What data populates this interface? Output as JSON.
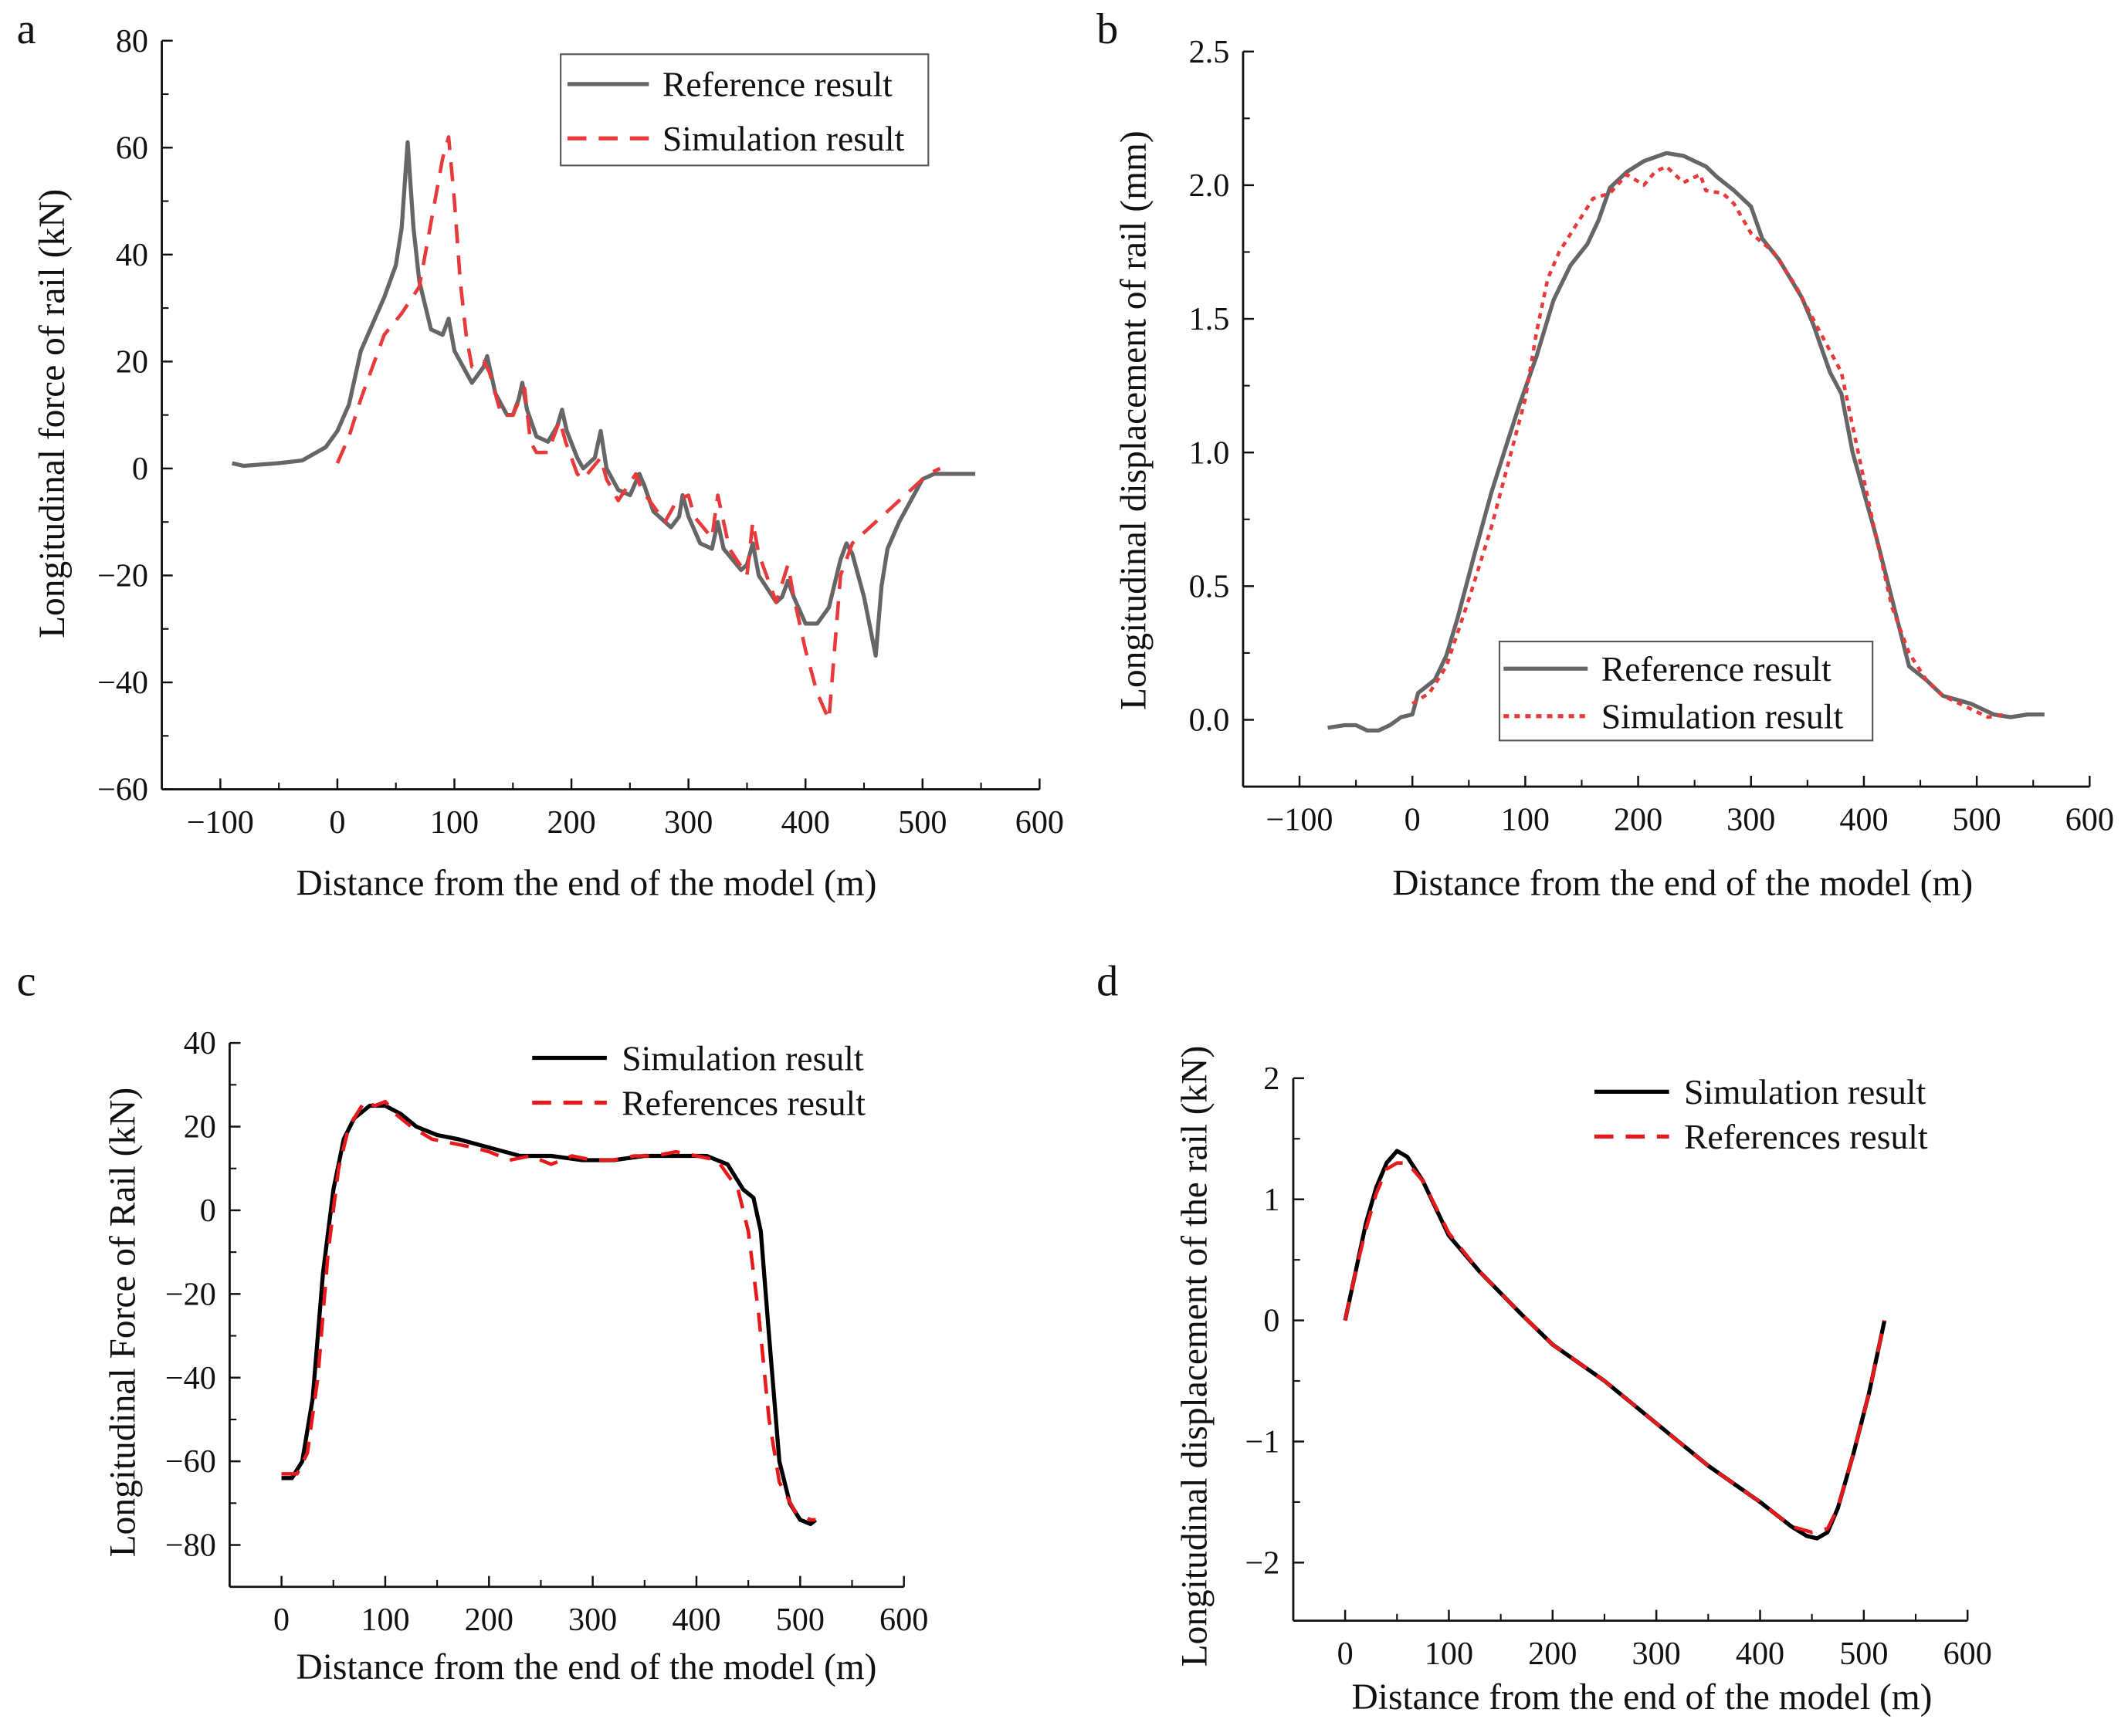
{
  "chart_data": [
    {
      "panel": "a",
      "type": "line",
      "xlabel": "Distance from the end of the model (m)",
      "ylabel": "Longitudinal force of  rail (kN)",
      "xlim": [
        -150,
        600
      ],
      "ylim": [
        -60,
        80
      ],
      "xticks": [
        "−100",
        "0",
        "100",
        "200",
        "300",
        "400",
        "500",
        "600"
      ],
      "xtick_values": [
        -100,
        0,
        100,
        200,
        300,
        400,
        500,
        600
      ],
      "yticks": [
        "−60",
        "−40",
        "−20",
        "0",
        "20",
        "40",
        "60",
        "80"
      ],
      "ytick_values": [
        -60,
        -40,
        -20,
        0,
        20,
        40,
        60,
        80
      ],
      "legend": "top-right",
      "series": [
        {
          "name": "Reference result",
          "color": "#666666",
          "style": "solid",
          "x": [
            -90,
            -80,
            -50,
            -30,
            -10,
            0,
            10,
            20,
            30,
            40,
            50,
            55,
            60,
            65,
            70,
            80,
            90,
            95,
            100,
            110,
            115,
            125,
            128,
            135,
            145,
            150,
            155,
            158,
            162,
            170,
            180,
            188,
            192,
            196,
            205,
            210,
            220,
            225,
            230,
            240,
            250,
            258,
            262,
            270,
            285,
            292,
            295,
            300,
            310,
            320,
            325,
            330,
            345,
            350,
            355,
            360,
            375,
            380,
            385,
            390,
            400,
            410,
            420,
            430,
            435,
            440,
            450,
            460,
            465,
            470,
            480,
            490,
            500,
            510,
            530,
            545
          ],
          "y": [
            1,
            0.5,
            1,
            1.5,
            4,
            7,
            12,
            22,
            27,
            32,
            38,
            45,
            61,
            45,
            35,
            26,
            25,
            28,
            22,
            18,
            16,
            19,
            21,
            14,
            10,
            10,
            13,
            16,
            11,
            6,
            5,
            8,
            11,
            7,
            2,
            0,
            2,
            7,
            0,
            -4,
            -5,
            -1,
            -3,
            -8,
            -11,
            -9,
            -5,
            -9,
            -14,
            -15,
            -10,
            -15,
            -19,
            -18,
            -14,
            -20,
            -25,
            -24,
            -21,
            -24,
            -29,
            -29,
            -26,
            -17,
            -14,
            -16,
            -24,
            -35,
            -22,
            -15,
            -10,
            -6,
            -2,
            -1,
            -1,
            -1
          ]
        },
        {
          "name": "Simulation result",
          "color": "#e8393b",
          "style": "dashed",
          "x": [
            0,
            10,
            20,
            30,
            40,
            55,
            70,
            80,
            90,
            95,
            100,
            105,
            110,
            115,
            125,
            130,
            140,
            150,
            160,
            165,
            170,
            180,
            190,
            195,
            205,
            210,
            225,
            230,
            240,
            255,
            260,
            270,
            280,
            290,
            300,
            305,
            320,
            325,
            335,
            350,
            355,
            360,
            375,
            385,
            390,
            400,
            410,
            420,
            430,
            440,
            450,
            470,
            490,
            505,
            515
          ],
          "y": [
            1,
            6,
            13,
            19,
            25,
            29,
            34,
            46,
            58,
            62,
            50,
            35,
            25,
            19,
            20,
            18,
            10,
            10,
            15,
            5,
            3,
            3,
            9,
            5,
            -1,
            -2,
            2,
            -2,
            -6,
            -1,
            -4,
            -7,
            -10,
            -6,
            -5,
            -9,
            -13,
            -5,
            -15,
            -20,
            -10,
            -16,
            -25,
            -18,
            -24,
            -34,
            -42,
            -47,
            -20,
            -14,
            -12,
            -8,
            -4,
            -1,
            0
          ]
        }
      ]
    },
    {
      "panel": "b",
      "type": "line",
      "xlabel": "Distance from the end of the model (m)",
      "ylabel": "Longitudinal displacement of  rail (mm)",
      "xlim": [
        -150,
        600
      ],
      "ylim": [
        -0.25,
        2.5
      ],
      "xticks": [
        "−100",
        "0",
        "100",
        "200",
        "300",
        "400",
        "500",
        "600"
      ],
      "xtick_values": [
        -100,
        0,
        100,
        200,
        300,
        400,
        500,
        600
      ],
      "yticks": [
        "0.0",
        "0.5",
        "1.0",
        "1.5",
        "2.0",
        "2.5"
      ],
      "ytick_values": [
        0,
        0.5,
        1,
        1.5,
        2,
        2.5
      ],
      "legend": "bottom-right",
      "series": [
        {
          "name": "Reference result",
          "color": "#666666",
          "style": "solid",
          "x": [
            -75,
            -60,
            -50,
            -40,
            -30,
            -20,
            -10,
            0,
            5,
            20,
            30,
            40,
            55,
            70,
            85,
            95,
            110,
            125,
            140,
            155,
            165,
            175,
            190,
            205,
            225,
            240,
            260,
            270,
            285,
            300,
            310,
            325,
            345,
            355,
            370,
            380,
            390,
            410,
            425,
            440,
            455,
            470,
            495,
            515,
            530,
            545,
            560
          ],
          "y": [
            -0.03,
            -0.02,
            -0.02,
            -0.04,
            -0.04,
            -0.02,
            0.01,
            0.02,
            0.1,
            0.15,
            0.24,
            0.38,
            0.62,
            0.85,
            1.05,
            1.18,
            1.36,
            1.57,
            1.7,
            1.78,
            1.87,
            1.99,
            2.05,
            2.09,
            2.12,
            2.11,
            2.07,
            2.03,
            1.98,
            1.92,
            1.8,
            1.72,
            1.58,
            1.48,
            1.3,
            1.22,
            1.0,
            0.7,
            0.45,
            0.2,
            0.15,
            0.09,
            0.06,
            0.02,
            0.01,
            0.02,
            0.02
          ]
        },
        {
          "name": "Simulation result",
          "color": "#e8393b",
          "style": "dotted",
          "x": [
            0,
            15,
            30,
            50,
            70,
            85,
            100,
            110,
            120,
            130,
            145,
            160,
            175,
            190,
            205,
            215,
            225,
            240,
            255,
            260,
            275,
            285,
            300,
            320,
            340,
            360,
            380,
            395,
            410,
            425,
            440,
            455,
            470,
            490,
            510,
            525
          ],
          "y": [
            0.06,
            0.1,
            0.2,
            0.45,
            0.72,
            0.96,
            1.2,
            1.45,
            1.65,
            1.75,
            1.85,
            1.95,
            1.97,
            2.04,
            2.0,
            2.05,
            2.07,
            2.01,
            2.04,
            1.98,
            1.97,
            1.93,
            1.82,
            1.75,
            1.62,
            1.46,
            1.3,
            1.0,
            0.7,
            0.42,
            0.25,
            0.15,
            0.09,
            0.05,
            0.01,
            0.02
          ]
        }
      ]
    },
    {
      "panel": "c",
      "type": "line",
      "xlabel": "Distance from the end of the model (m)",
      "ylabel": "Longitudinal Force of Rail (kN)",
      "xlim": [
        -50,
        600
      ],
      "ylim": [
        -90,
        40
      ],
      "xticks": [
        "0",
        "100",
        "200",
        "300",
        "400",
        "500",
        "600"
      ],
      "xtick_values": [
        0,
        100,
        200,
        300,
        400,
        500,
        600
      ],
      "yticks": [
        "−80",
        "−60",
        "−40",
        "−20",
        "0",
        "20",
        "40"
      ],
      "ytick_values": [
        -80,
        -60,
        -40,
        -20,
        0,
        20,
        40
      ],
      "legend": "top-right",
      "series": [
        {
          "name": "Simulation result",
          "color": "#000000",
          "style": "solid",
          "x": [
            0,
            10,
            20,
            30,
            40,
            50,
            60,
            70,
            85,
            100,
            115,
            130,
            150,
            170,
            200,
            230,
            260,
            290,
            320,
            350,
            380,
            410,
            430,
            445,
            455,
            462,
            470,
            480,
            490,
            500,
            510,
            515
          ],
          "y": [
            -64,
            -64,
            -60,
            -45,
            -15,
            5,
            17,
            22,
            25,
            25,
            23,
            20,
            18,
            17,
            15,
            13,
            13,
            12,
            12,
            13,
            13,
            13,
            11,
            5,
            3,
            -5,
            -30,
            -60,
            -70,
            -74,
            -75,
            -74
          ]
        },
        {
          "name": "References result",
          "color": "#e8191c",
          "style": "dashed",
          "x": [
            0,
            15,
            25,
            35,
            45,
            55,
            65,
            80,
            90,
            100,
            110,
            125,
            145,
            165,
            185,
            200,
            220,
            240,
            260,
            280,
            300,
            320,
            340,
            360,
            380,
            400,
            420,
            440,
            450,
            460,
            470,
            480,
            495,
            510,
            515
          ],
          "y": [
            -63,
            -63,
            -58,
            -40,
            -10,
            10,
            20,
            26,
            25,
            26,
            23,
            20,
            17,
            16,
            15,
            14,
            12,
            13,
            11,
            13,
            12,
            12,
            13,
            13,
            14,
            13,
            12,
            5,
            -5,
            -25,
            -50,
            -65,
            -72,
            -74,
            -74
          ]
        }
      ]
    },
    {
      "panel": "d",
      "type": "line",
      "xlabel": "Distance from the end of the model (m)",
      "ylabel": "Longitudinal displacement of the rail (kN)",
      "xlim": [
        -50,
        600
      ],
      "ylim": [
        -2.48,
        2
      ],
      "xticks": [
        "0",
        "100",
        "200",
        "300",
        "400",
        "500",
        "600"
      ],
      "xtick_values": [
        0,
        100,
        200,
        300,
        400,
        500,
        600
      ],
      "yticks": [
        "−2",
        "−1",
        "0",
        "1",
        "2"
      ],
      "ytick_values": [
        -2,
        -1,
        0,
        1,
        2
      ],
      "legend": "top-right",
      "series": [
        {
          "name": "Simulation result",
          "color": "#000000",
          "style": "solid",
          "x": [
            0,
            10,
            20,
            30,
            40,
            50,
            60,
            75,
            100,
            130,
            170,
            200,
            250,
            300,
            350,
            400,
            430,
            445,
            455,
            465,
            475,
            490,
            505,
            520
          ],
          "y": [
            0,
            0.4,
            0.8,
            1.1,
            1.3,
            1.4,
            1.35,
            1.15,
            0.7,
            0.4,
            0.05,
            -0.2,
            -0.5,
            -0.85,
            -1.2,
            -1.5,
            -1.7,
            -1.78,
            -1.8,
            -1.75,
            -1.55,
            -1.1,
            -0.6,
            0
          ]
        },
        {
          "name": "References result",
          "color": "#e8191c",
          "style": "dashed",
          "x": [
            0,
            10,
            20,
            30,
            40,
            50,
            60,
            75,
            100,
            130,
            170,
            200,
            250,
            300,
            350,
            400,
            430,
            450,
            465,
            475,
            490,
            505,
            520
          ],
          "y": [
            0,
            0.4,
            0.75,
            1.05,
            1.25,
            1.3,
            1.3,
            1.15,
            0.72,
            0.4,
            0.05,
            -0.2,
            -0.5,
            -0.85,
            -1.2,
            -1.5,
            -1.7,
            -1.75,
            -1.72,
            -1.55,
            -1.1,
            -0.6,
            0
          ]
        }
      ]
    }
  ]
}
